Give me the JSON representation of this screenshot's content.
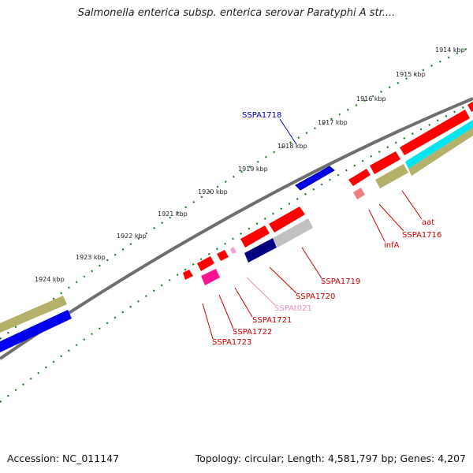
{
  "title": "Salmonella enterica subsp. enterica serovar Paratyphi A str....",
  "accession": "Accession: NC_011147",
  "summary": "Topology: circular; Length: 4,581,797 bp; Genes: 4,207",
  "ticks": [
    {
      "label": "1914 kbp"
    },
    {
      "label": "1915 kbp"
    },
    {
      "label": "1916 kbp"
    },
    {
      "label": "1917 kbp"
    },
    {
      "label": "1918 kbp"
    },
    {
      "label": "1919 kbp"
    },
    {
      "label": "1920 kbp"
    },
    {
      "label": "1921 kbp"
    },
    {
      "label": "1922 kbp"
    },
    {
      "label": "1923 kbp"
    },
    {
      "label": "1924 kbp"
    }
  ],
  "gene_labels": [
    {
      "name": "SSPA1718",
      "color": "#0000cc"
    },
    {
      "name": "aat",
      "color": "#cc0000"
    },
    {
      "name": "SSPA1716",
      "color": "#cc0000"
    },
    {
      "name": "infA",
      "color": "#cc0000"
    },
    {
      "name": "SSPA1719",
      "color": "#cc0000"
    },
    {
      "name": "SSPA1720",
      "color": "#cc0000"
    },
    {
      "name": "SSPAt021",
      "color": "#e88fc4"
    },
    {
      "name": "SSPA1721",
      "color": "#cc0000"
    },
    {
      "name": "SSPA1722",
      "color": "#cc0000"
    },
    {
      "name": "SSPA1723",
      "color": "#cc0000"
    }
  ],
  "colors": {
    "backbone": "#808080",
    "tick": "#1f7a1f",
    "gene_red": "#ff0000",
    "gene_blue": "#0000ee",
    "gene_navy": "#000080",
    "gene_olive": "#b5b06a",
    "gene_cyan": "#00e5ee",
    "gene_grey": "#c0c0c0",
    "gene_pink": "#ff1493",
    "gene_lightpink": "#f4a0d8",
    "gene_salmon": "#f08080"
  }
}
